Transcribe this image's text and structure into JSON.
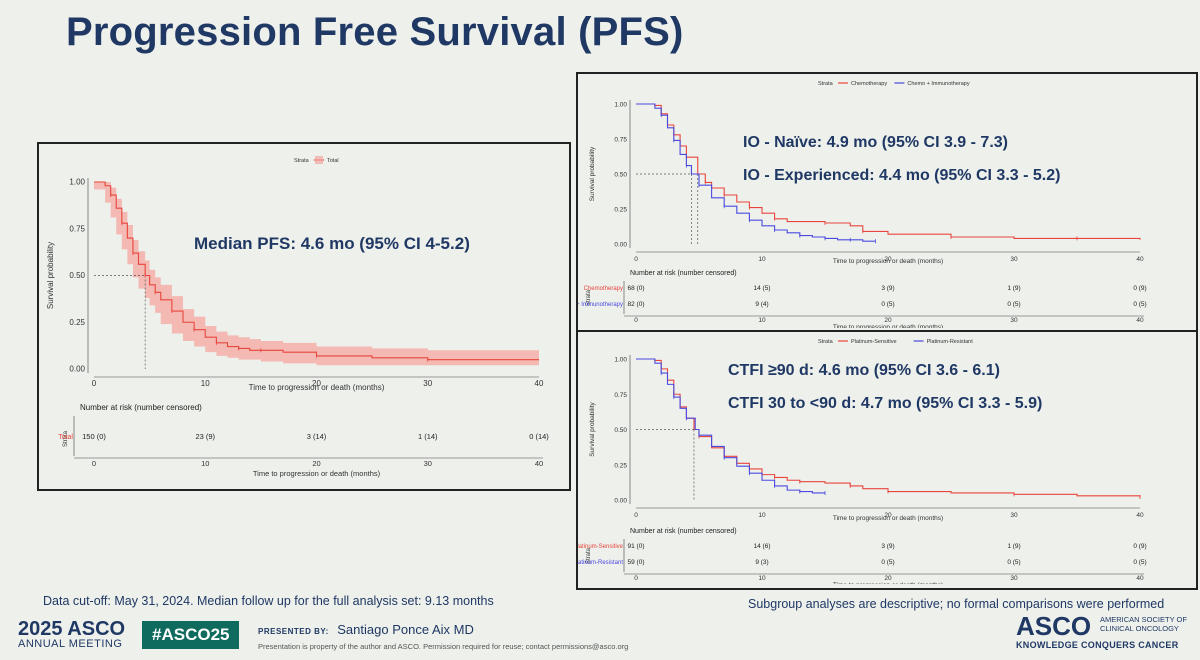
{
  "title": "Progression Free Survival (PFS)",
  "footer": {
    "cutoff": "Data cut-off: May 31, 2024. Median follow up for the full analysis set: 9.13 months",
    "subgroup": "Subgroup analyses are descriptive; no formal comparisons were performed",
    "meeting_year": "2025 ASCO",
    "meeting_sub": "ANNUAL MEETING",
    "hashtag": "#ASCO25",
    "presented_label": "PRESENTED BY:",
    "presenter": "Santiago Ponce Aix MD",
    "property": "Presentation is property of the author and ASCO. Permission required for reuse; contact permissions@asco.org",
    "org": "ASCO",
    "org_desc": "AMERICAN SOCIETY OF CLINICAL ONCOLOGY",
    "org_tag": "KNOWLEDGE CONQUERS CANCER"
  },
  "colors": {
    "title": "#1f3864",
    "red": "#e8453c",
    "blue": "#4a4ae0",
    "band": "#f4a79f"
  },
  "chart_data": [
    {
      "type": "line",
      "id": "total",
      "strata_label": "Strata",
      "annotation": [
        "Median PFS: 4.6 mo (95% CI 4-5.2)"
      ],
      "xlabel": "Time to progression or death (months)",
      "ylabel": "Survival probability",
      "xlim": [
        0,
        40
      ],
      "ylim": [
        0,
        1
      ],
      "xticks": [
        "0",
        "10",
        "20",
        "30",
        "40"
      ],
      "yticks": [
        "0.00",
        "0.25",
        "0.50",
        "0.75",
        "1.00"
      ],
      "median_x": 4.6,
      "series": [
        {
          "name": "Total",
          "color": "#e8453c",
          "x": [
            0,
            1,
            1.5,
            2,
            2.5,
            3,
            3.5,
            4,
            4.6,
            5,
            5.5,
            6,
            7,
            8,
            9,
            10,
            11,
            12,
            13,
            14,
            15,
            17,
            20,
            25,
            30,
            40
          ],
          "y": [
            1,
            0.98,
            0.93,
            0.86,
            0.78,
            0.7,
            0.62,
            0.56,
            0.5,
            0.45,
            0.41,
            0.37,
            0.31,
            0.25,
            0.21,
            0.17,
            0.14,
            0.12,
            0.11,
            0.1,
            0.1,
            0.09,
            0.07,
            0.06,
            0.05,
            0.05
          ],
          "lower": [
            1,
            0.96,
            0.89,
            0.81,
            0.72,
            0.64,
            0.56,
            0.49,
            0.43,
            0.38,
            0.34,
            0.3,
            0.24,
            0.19,
            0.15,
            0.12,
            0.09,
            0.07,
            0.06,
            0.05,
            0.05,
            0.04,
            0.03,
            0.02,
            0.02,
            0.02
          ],
          "upper": [
            1,
            1,
            0.97,
            0.91,
            0.84,
            0.77,
            0.69,
            0.63,
            0.58,
            0.53,
            0.49,
            0.45,
            0.39,
            0.32,
            0.28,
            0.23,
            0.2,
            0.18,
            0.17,
            0.16,
            0.15,
            0.14,
            0.12,
            0.11,
            0.1,
            0.1
          ]
        }
      ],
      "risk_table": {
        "title": "Number at risk (number censored)",
        "times": [
          "0",
          "10",
          "20",
          "30",
          "40"
        ],
        "rows": [
          {
            "name": "Total",
            "color": "#e8453c",
            "values": [
              "150 (0)",
              "23 (9)",
              "3 (14)",
              "1 (14)",
              "0 (14)"
            ]
          }
        ]
      }
    },
    {
      "type": "line",
      "id": "io",
      "strata_label": "Strata",
      "annotation": [
        "IO - Naïve: 4.9 mo (95% CI 3.9 - 7.3)",
        "IO - Experienced: 4.4 mo (95% CI 3.3 - 5.2)"
      ],
      "xlabel": "Time to progression or death (months)",
      "ylabel": "Survival probability",
      "xlim": [
        0,
        40
      ],
      "ylim": [
        0,
        1
      ],
      "xticks": [
        "0",
        "10",
        "20",
        "30",
        "40"
      ],
      "yticks": [
        "0.00",
        "0.25",
        "0.50",
        "0.75",
        "1.00"
      ],
      "median_x": [
        4.4,
        4.9
      ],
      "series": [
        {
          "name": "Chemotherapy",
          "color": "#e8453c",
          "x": [
            0,
            1.5,
            2,
            2.5,
            3,
            3.5,
            4,
            4.9,
            5.5,
            6,
            7,
            8,
            9,
            10,
            11,
            12,
            15,
            17,
            18,
            20,
            25,
            30,
            35,
            40
          ],
          "y": [
            1,
            0.99,
            0.93,
            0.85,
            0.78,
            0.7,
            0.62,
            0.5,
            0.44,
            0.4,
            0.35,
            0.3,
            0.26,
            0.22,
            0.18,
            0.16,
            0.15,
            0.13,
            0.09,
            0.07,
            0.05,
            0.04,
            0.04,
            0.03
          ]
        },
        {
          "name": "Chemo + Immunotherapy",
          "color": "#4a4ae0",
          "x": [
            0,
            1.5,
            2,
            2.5,
            3,
            3.5,
            4,
            4.4,
            5,
            6,
            7,
            8,
            9,
            10,
            11,
            12,
            13,
            14,
            15,
            16,
            17,
            18,
            19
          ],
          "y": [
            1,
            0.97,
            0.92,
            0.83,
            0.74,
            0.64,
            0.56,
            0.5,
            0.42,
            0.33,
            0.27,
            0.22,
            0.17,
            0.13,
            0.1,
            0.08,
            0.06,
            0.05,
            0.04,
            0.03,
            0.03,
            0.02,
            0.02
          ]
        }
      ],
      "risk_table": {
        "title": "Number at risk (number censored)",
        "times": [
          "0",
          "10",
          "20",
          "30",
          "40"
        ],
        "rows": [
          {
            "name": "Chemotherapy",
            "color": "#e8453c",
            "values": [
              "68 (0)",
              "14 (5)",
              "3 (9)",
              "1 (9)",
              "0 (9)"
            ]
          },
          {
            "name": "Chemo + Immunotherapy",
            "color": "#4a4ae0",
            "values": [
              "82 (0)",
              "9 (4)",
              "0 (5)",
              "0 (5)",
              "0 (5)"
            ]
          }
        ]
      }
    },
    {
      "type": "line",
      "id": "ctfi",
      "strata_label": "Strata",
      "annotation": [
        "CTFI ≥90 d: 4.6 mo (95% CI 3.6 - 6.1)",
        "CTFI 30 to <90 d: 4.7 mo (95% CI 3.3 - 5.9)"
      ],
      "xlabel": "Time to progression or death (months)",
      "ylabel": "Survival probability",
      "xlim": [
        0,
        40
      ],
      "ylim": [
        0,
        1
      ],
      "xticks": [
        "0",
        "10",
        "20",
        "30",
        "40"
      ],
      "yticks": [
        "0.00",
        "0.25",
        "0.50",
        "0.75",
        "1.00"
      ],
      "median_x": 4.6,
      "series": [
        {
          "name": "Platinum-Sensitive",
          "color": "#e8453c",
          "x": [
            0,
            1.5,
            2,
            2.5,
            3,
            3.5,
            4,
            4.6,
            5,
            6,
            7,
            8,
            9,
            10,
            11,
            12,
            13,
            15,
            17,
            18,
            20,
            25,
            30,
            35,
            40
          ],
          "y": [
            1,
            0.99,
            0.93,
            0.85,
            0.75,
            0.66,
            0.58,
            0.5,
            0.45,
            0.37,
            0.31,
            0.26,
            0.22,
            0.18,
            0.16,
            0.14,
            0.13,
            0.12,
            0.1,
            0.08,
            0.06,
            0.05,
            0.04,
            0.03,
            0.02
          ]
        },
        {
          "name": "Platinum-Resistant",
          "color": "#4a4ae0",
          "x": [
            0,
            1.5,
            2,
            2.5,
            3,
            3.5,
            4,
            4.7,
            5,
            6,
            7,
            8,
            9,
            10,
            11,
            12,
            13,
            14,
            15
          ],
          "y": [
            1,
            0.97,
            0.9,
            0.82,
            0.73,
            0.65,
            0.58,
            0.5,
            0.46,
            0.38,
            0.3,
            0.24,
            0.19,
            0.14,
            0.1,
            0.07,
            0.06,
            0.05,
            0.05
          ]
        }
      ],
      "risk_table": {
        "title": "Number at risk (number censored)",
        "times": [
          "0",
          "10",
          "20",
          "30",
          "40"
        ],
        "rows": [
          {
            "name": "Platinum-Sensitive",
            "color": "#e8453c",
            "values": [
              "91 (0)",
              "14 (6)",
              "3 (9)",
              "1 (9)",
              "0 (9)"
            ]
          },
          {
            "name": "Platinum-Resistant",
            "color": "#4a4ae0",
            "values": [
              "59 (0)",
              "9 (3)",
              "0 (5)",
              "0 (5)",
              "0 (5)"
            ]
          }
        ]
      }
    }
  ]
}
